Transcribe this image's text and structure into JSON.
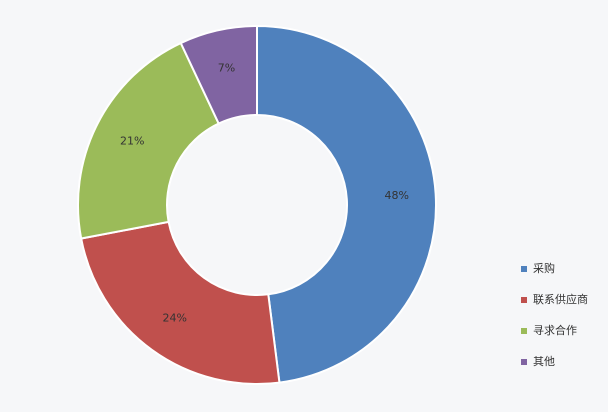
{
  "chart_data": {
    "type": "pie",
    "variant": "donut",
    "categories": [
      "采购",
      "联系供应商",
      "寻求合作",
      "其他"
    ],
    "values": [
      48,
      24,
      21,
      7
    ],
    "labels": [
      "48%",
      "24%",
      "21%",
      "7%"
    ],
    "colors": [
      "#4f81bd",
      "#c0504d",
      "#9bbb59",
      "#8064a2"
    ],
    "title": "",
    "legend_position": "right-bottom",
    "start_angle": "12 o'clock",
    "direction": "clockwise"
  }
}
